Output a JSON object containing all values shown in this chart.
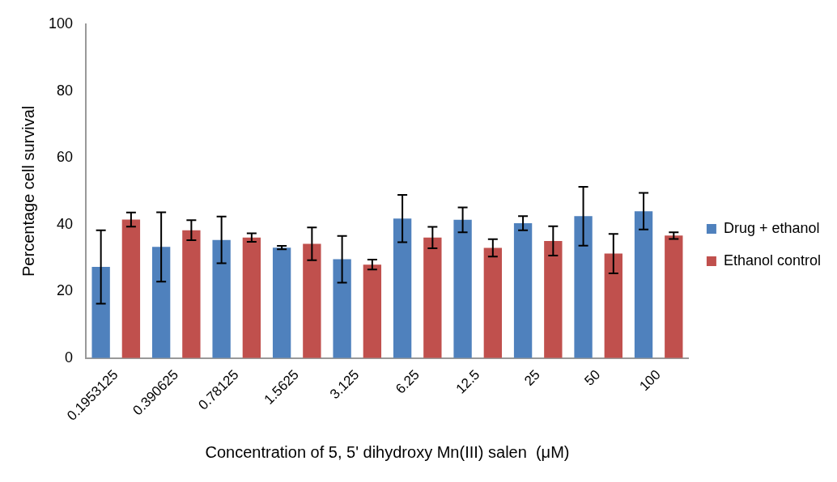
{
  "chart_data": {
    "type": "bar",
    "xlabel": "Concentration of 5, 5' dihydroxy Mn(III) salen  (μM)",
    "ylabel": "Percentage cell survival",
    "categories": [
      "0.1953125",
      "0.390625",
      "0.78125",
      "1.5625",
      "3.125",
      "6.25",
      "12.5",
      "25",
      "50",
      "100"
    ],
    "series": [
      {
        "name": "Drug + ethanol",
        "color": "#4f81bd",
        "values": [
          27.3,
          33.3,
          35.4,
          33.1,
          29.6,
          41.8,
          41.4,
          40.4,
          42.5,
          44.0
        ],
        "errors": [
          11,
          10.4,
          7,
          0.5,
          7,
          7.1,
          3.7,
          2.1,
          8.8,
          5.5
        ]
      },
      {
        "name": "Ethanol control",
        "color": "#c0504d",
        "values": [
          41.5,
          38.3,
          36.1,
          34.2,
          28.0,
          36.1,
          33.0,
          35.1,
          31.3,
          36.7
        ],
        "errors": [
          2.1,
          3,
          1.3,
          4.9,
          1.5,
          3.2,
          2.6,
          4.4,
          5.9,
          1
        ]
      }
    ],
    "ylim": [
      0,
      100
    ],
    "yticks": [
      0,
      20,
      40,
      60,
      80,
      100
    ],
    "grid": false,
    "legend": "right"
  }
}
